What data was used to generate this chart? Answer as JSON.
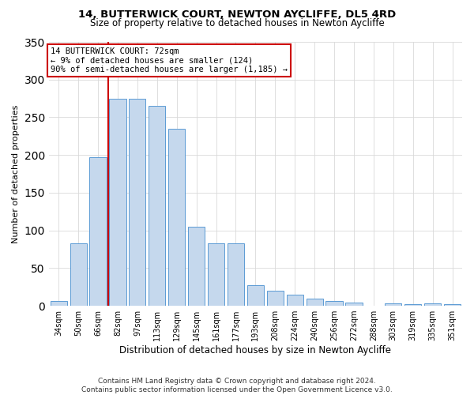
{
  "title1": "14, BUTTERWICK COURT, NEWTON AYCLIFFE, DL5 4RD",
  "title2": "Size of property relative to detached houses in Newton Aycliffe",
  "xlabel": "Distribution of detached houses by size in Newton Aycliffe",
  "ylabel": "Number of detached properties",
  "footer1": "Contains HM Land Registry data © Crown copyright and database right 2024.",
  "footer2": "Contains public sector information licensed under the Open Government Licence v3.0.",
  "annotation_line1": "14 BUTTERWICK COURT: 72sqm",
  "annotation_line2": "← 9% of detached houses are smaller (124)",
  "annotation_line3": "90% of semi-detached houses are larger (1,185) →",
  "bar_categories": [
    "34sqm",
    "50sqm",
    "66sqm",
    "82sqm",
    "97sqm",
    "113sqm",
    "129sqm",
    "145sqm",
    "161sqm",
    "177sqm",
    "193sqm",
    "208sqm",
    "224sqm",
    "240sqm",
    "256sqm",
    "272sqm",
    "288sqm",
    "303sqm",
    "319sqm",
    "335sqm",
    "351sqm"
  ],
  "bar_values": [
    6,
    83,
    197,
    275,
    275,
    265,
    235,
    105,
    83,
    83,
    27,
    20,
    15,
    10,
    6,
    4,
    0,
    3,
    2,
    3,
    2
  ],
  "bar_color": "#c5d8ed",
  "bar_edge_color": "#5b9bd5",
  "red_line_color": "#cc0000",
  "red_line_x": 2.5,
  "ylim": [
    0,
    350
  ],
  "yticks": [
    0,
    50,
    100,
    150,
    200,
    250,
    300,
    350
  ],
  "annotation_box_color": "#ffffff",
  "annotation_box_edge": "#cc0000",
  "grid_color": "#d9d9d9",
  "background_color": "#ffffff",
  "title1_fontsize": 9.5,
  "title2_fontsize": 8.5,
  "ylabel_fontsize": 8,
  "xlabel_fontsize": 8.5,
  "tick_fontsize": 7,
  "footer_fontsize": 6.5,
  "annot_fontsize": 7.5
}
